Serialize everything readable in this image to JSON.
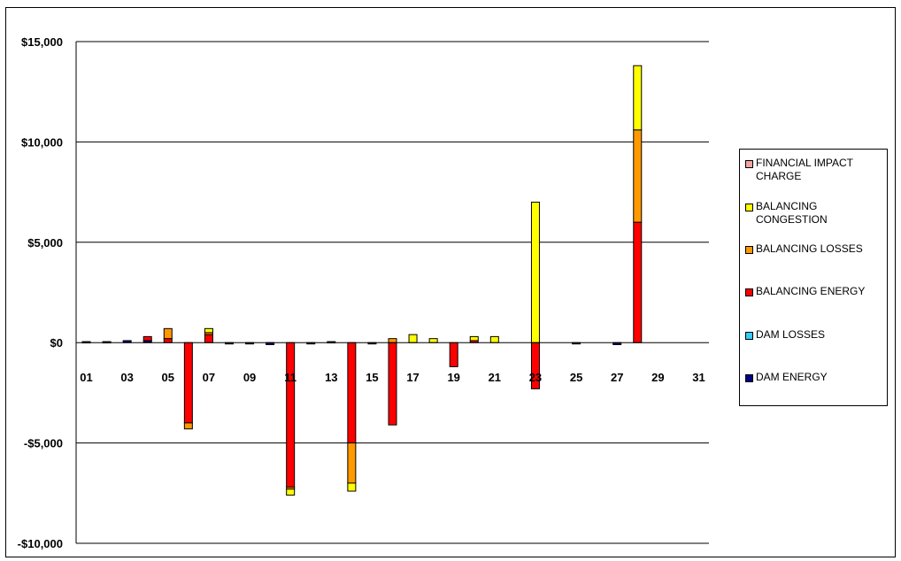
{
  "chart_data": {
    "type": "bar",
    "stacked": true,
    "categories": [
      "01",
      "02",
      "03",
      "04",
      "05",
      "06",
      "07",
      "08",
      "09",
      "10",
      "11",
      "12",
      "13",
      "14",
      "15",
      "16",
      "17",
      "18",
      "19",
      "20",
      "21",
      "22",
      "23",
      "24",
      "25",
      "26",
      "27",
      "28",
      "29",
      "30",
      "31"
    ],
    "x_tick_labels": [
      "01",
      "03",
      "05",
      "07",
      "09",
      "11",
      "13",
      "15",
      "17",
      "19",
      "21",
      "23",
      "25",
      "27",
      "29",
      "31"
    ],
    "y_tick_labels": [
      "$15,000",
      "$10,000",
      "$5,000",
      "$0",
      "-$5,000",
      "-$10,000"
    ],
    "y_ticks": [
      15000,
      10000,
      5000,
      0,
      -5000,
      -10000
    ],
    "ylim": [
      -10000,
      15000
    ],
    "grid": true,
    "legend_position": "right",
    "series": [
      {
        "name": "FINANCIAL IMPACT CHARGE",
        "color": "#f4a3a3",
        "values": [
          0,
          0,
          0,
          0,
          0,
          0,
          0,
          0,
          0,
          0,
          0,
          0,
          0,
          0,
          0,
          0,
          0,
          0,
          0,
          0,
          0,
          0,
          0,
          0,
          0,
          0,
          0,
          0,
          0,
          0,
          0
        ]
      },
      {
        "name": "BALANCING CONGESTION",
        "color": "#ffff00",
        "values": [
          0,
          0,
          0,
          0,
          0,
          0,
          200,
          0,
          0,
          0,
          -300,
          0,
          0,
          -400,
          0,
          0,
          400,
          200,
          0,
          200,
          300,
          0,
          7000,
          0,
          0,
          0,
          0,
          3200,
          0,
          0,
          0
        ]
      },
      {
        "name": "BALANCING LOSSES",
        "color": "#ff9900",
        "values": [
          0,
          0,
          0,
          0,
          500,
          -300,
          100,
          0,
          0,
          0,
          -100,
          0,
          0,
          -2000,
          0,
          200,
          0,
          0,
          0,
          0,
          0,
          0,
          0,
          0,
          0,
          0,
          0,
          4600,
          0,
          0,
          0
        ]
      },
      {
        "name": "BALANCING ENERGY",
        "color": "#ff0000",
        "values": [
          0,
          0,
          0,
          200,
          200,
          -4000,
          400,
          0,
          0,
          0,
          -7200,
          0,
          0,
          -5000,
          0,
          -4100,
          0,
          0,
          -1200,
          100,
          0,
          0,
          -2300,
          0,
          0,
          0,
          0,
          6000,
          0,
          0,
          0
        ]
      },
      {
        "name": "DAM LOSSES",
        "color": "#33ccff",
        "values": [
          0,
          0,
          0,
          0,
          0,
          0,
          0,
          0,
          0,
          0,
          0,
          0,
          0,
          0,
          0,
          0,
          0,
          0,
          0,
          0,
          0,
          0,
          0,
          0,
          0,
          0,
          0,
          0,
          0,
          0,
          0
        ]
      },
      {
        "name": "DAM ENERGY",
        "color": "#000080",
        "values": [
          50,
          50,
          100,
          100,
          0,
          0,
          0,
          -50,
          -50,
          -100,
          0,
          -50,
          50,
          0,
          -50,
          0,
          0,
          0,
          0,
          0,
          0,
          0,
          0,
          0,
          -50,
          0,
          -100,
          0,
          0,
          0,
          0
        ]
      }
    ]
  }
}
